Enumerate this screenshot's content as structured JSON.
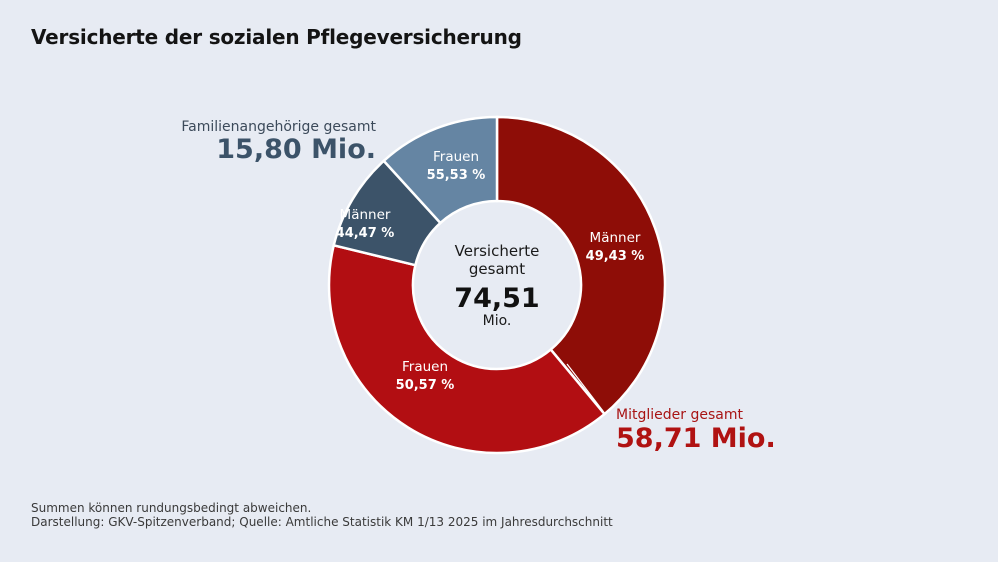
{
  "title": "Versicherte der sozialen Pflegeversicherung",
  "chart_data": {
    "type": "pie",
    "series": [
      {
        "group": "Mitglieder",
        "label": "Männer",
        "percent_label": "49,43 %",
        "value": 29.02,
        "color": "#8e0d07"
      },
      {
        "group": "Mitglieder",
        "label": "Frauen",
        "percent_label": "50,57 %",
        "value": 29.69,
        "color": "#b20e12"
      },
      {
        "group": "Familienangehörige",
        "label": "Männer",
        "percent_label": "44,47 %",
        "value": 7.03,
        "color": "#3c5369"
      },
      {
        "group": "Familienangehörige",
        "label": "Frauen",
        "percent_label": "55,53 %",
        "value": 8.77,
        "color": "#6585a3"
      }
    ],
    "center": {
      "line1": "Versicherte",
      "line2": "gesamt",
      "value": "74,51",
      "unit": "Mio."
    },
    "groups": {
      "familie": {
        "label": "Familienangehörige gesamt",
        "value": "15,80 Mio."
      },
      "mitglieder": {
        "label": "Mitglieder gesamt",
        "value": "58,71 Mio."
      }
    }
  },
  "footer": {
    "note": "Summen können rundungsbedingt abweichen.",
    "source": "Darstellung: GKV-Spitzenverband; Quelle: Amtliche Statistik KM 1/13 2025 im Jahresdurchschnitt"
  }
}
